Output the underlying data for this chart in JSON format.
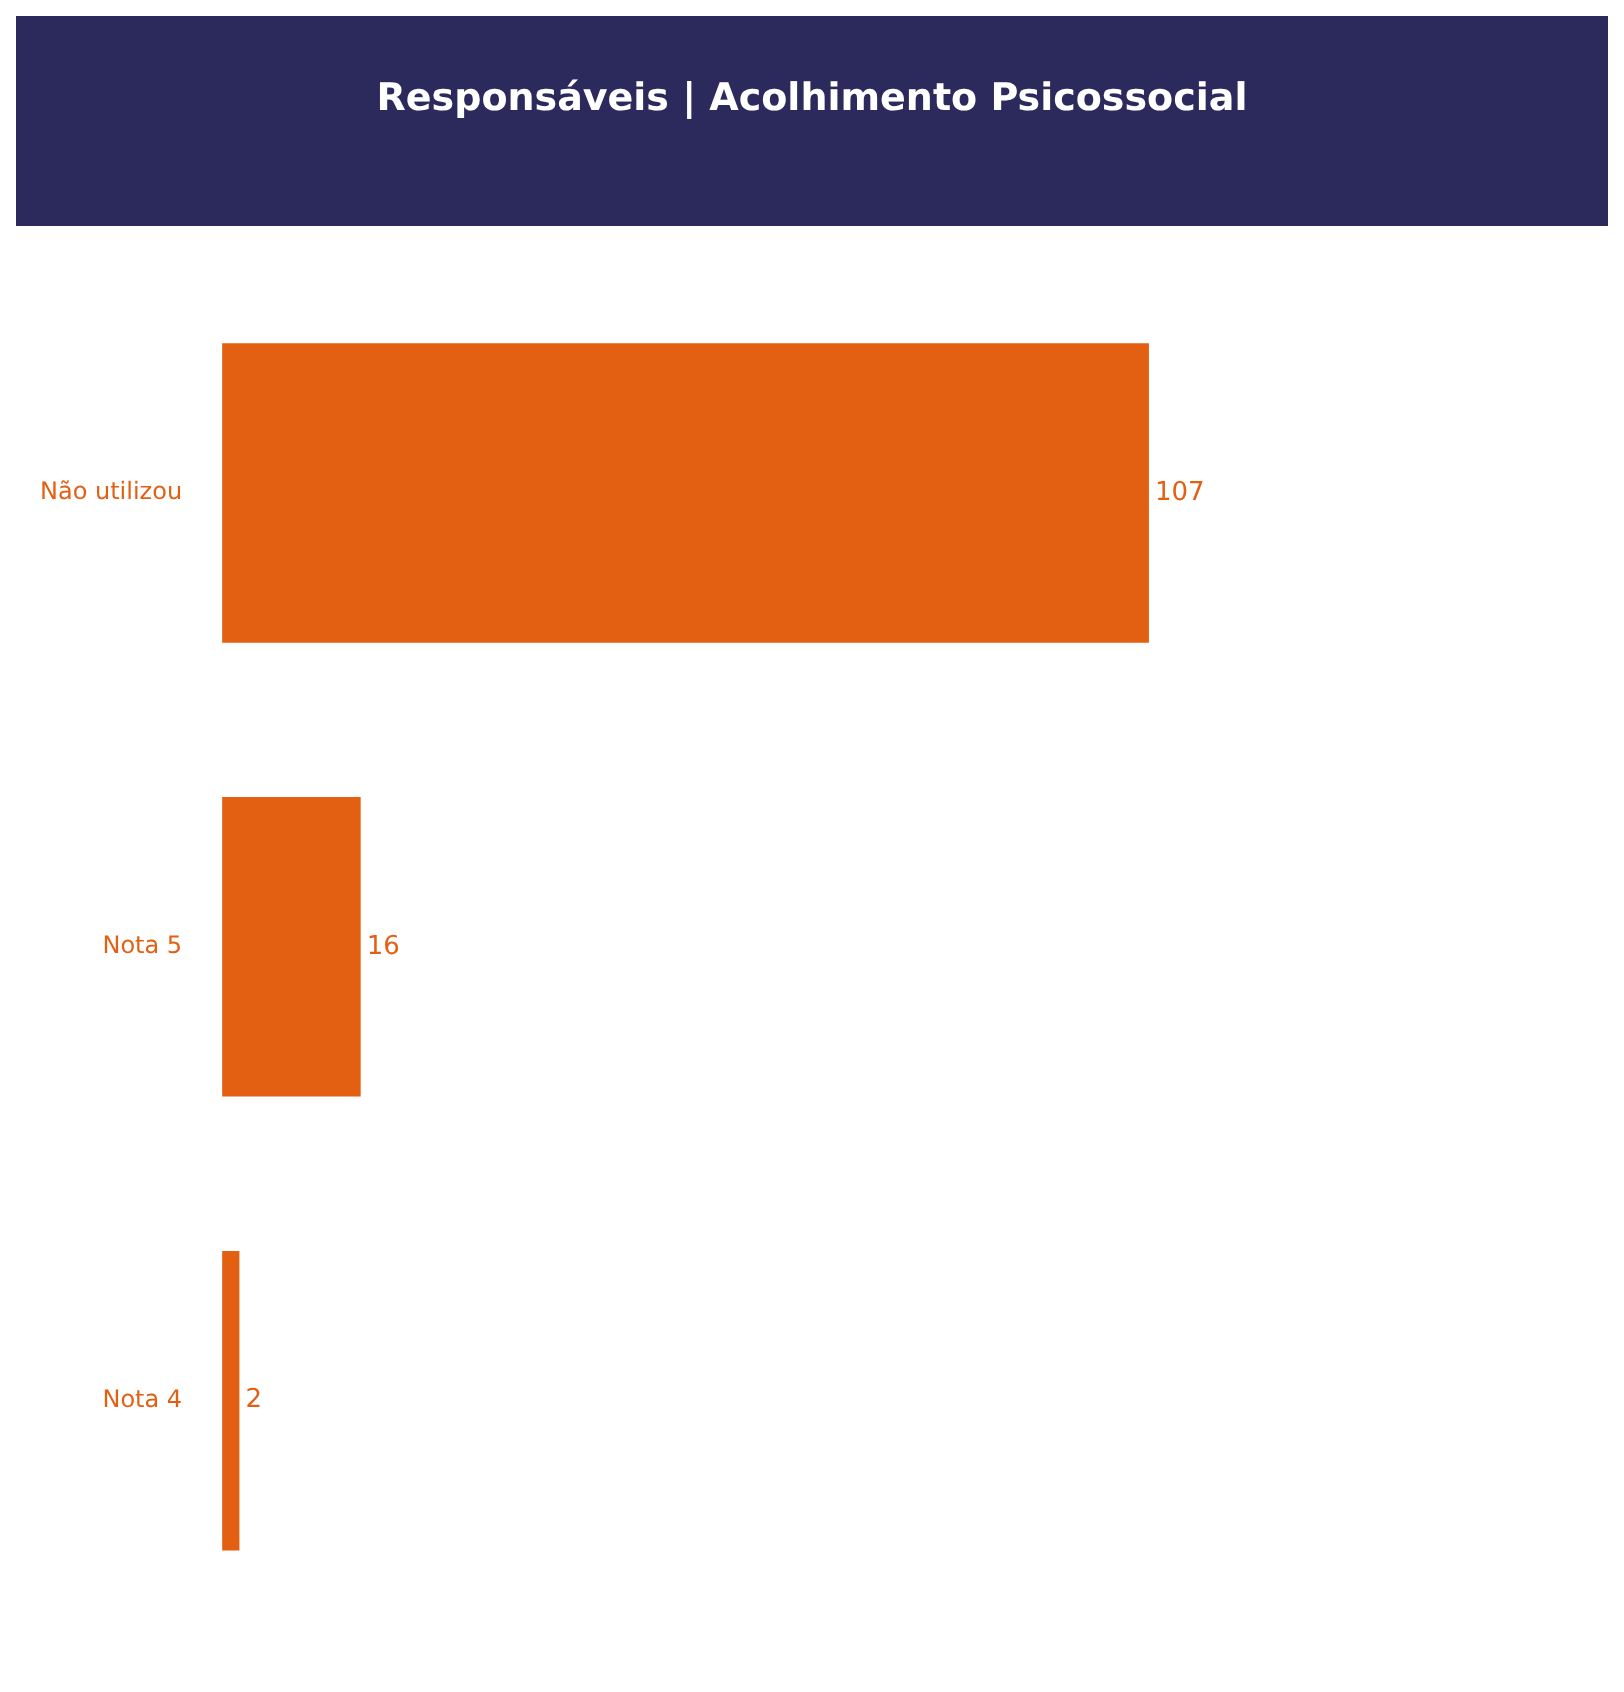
{
  "chart_data": {
    "type": "bar",
    "orientation": "horizontal",
    "title": "Responsáveis | Acolhimento Psicossocial",
    "categories": [
      "Não utilizou",
      "Nota 5",
      "Nota 4"
    ],
    "values": [
      107,
      16,
      2
    ],
    "color": "#e35f12",
    "data_labels": true
  }
}
